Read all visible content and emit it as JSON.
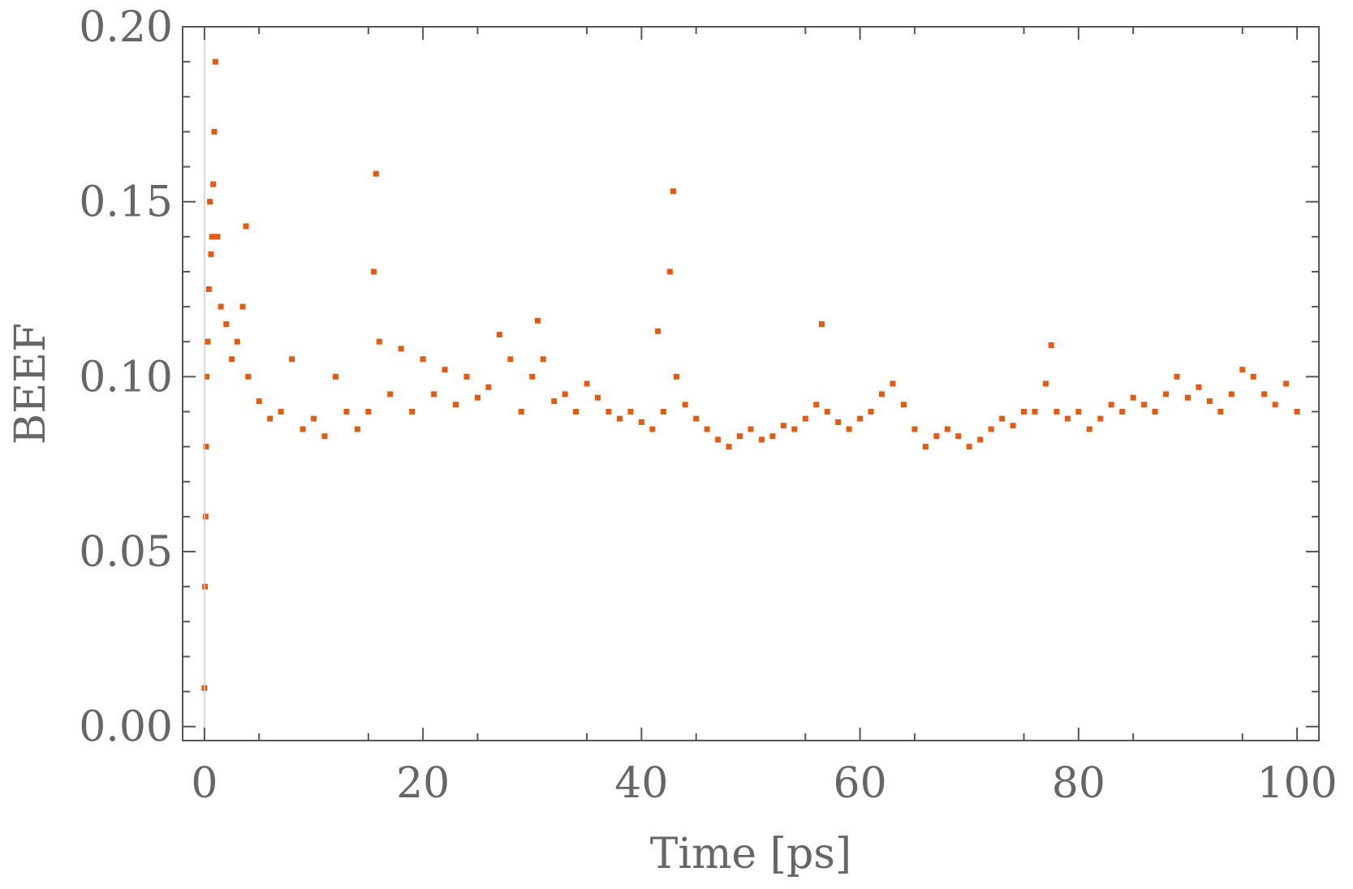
{
  "chart_data": {
    "type": "scatter",
    "title": "",
    "xlabel": "Time [ps]",
    "ylabel": "BEEF",
    "xlim": [
      -2,
      102
    ],
    "ylim": [
      -0.004,
      0.2
    ],
    "x_ticks": [
      0,
      20,
      40,
      60,
      80,
      100
    ],
    "x_tick_labels": [
      "0",
      "20",
      "40",
      "60",
      "80",
      "100"
    ],
    "y_ticks": [
      0.0,
      0.05,
      0.1,
      0.15,
      0.2
    ],
    "y_tick_labels": [
      "0.00",
      "0.05",
      "0.10",
      "0.15",
      "0.20"
    ],
    "grid": false,
    "legend": "none",
    "marker_color": "#e35a10",
    "series": [
      {
        "sampled_points": [
          [
            0.0,
            0.011
          ],
          [
            0.05,
            0.04
          ],
          [
            0.1,
            0.06
          ],
          [
            0.15,
            0.08
          ],
          [
            0.2,
            0.1
          ],
          [
            0.3,
            0.11
          ],
          [
            0.4,
            0.125
          ],
          [
            0.5,
            0.15
          ],
          [
            0.6,
            0.135
          ],
          [
            0.7,
            0.14
          ],
          [
            0.8,
            0.155
          ],
          [
            0.9,
            0.17
          ],
          [
            1.0,
            0.19
          ],
          [
            1.2,
            0.14
          ],
          [
            1.5,
            0.12
          ],
          [
            2.0,
            0.115
          ],
          [
            2.5,
            0.105
          ],
          [
            3.0,
            0.11
          ],
          [
            3.5,
            0.12
          ],
          [
            3.8,
            0.143
          ],
          [
            4.0,
            0.1
          ],
          [
            5.0,
            0.093
          ],
          [
            6.0,
            0.088
          ],
          [
            7.0,
            0.09
          ],
          [
            8.0,
            0.105
          ],
          [
            9.0,
            0.085
          ],
          [
            10.0,
            0.088
          ],
          [
            11.0,
            0.083
          ],
          [
            12.0,
            0.1
          ],
          [
            13.0,
            0.09
          ],
          [
            14.0,
            0.085
          ],
          [
            15.0,
            0.09
          ],
          [
            15.5,
            0.13
          ],
          [
            15.7,
            0.158
          ],
          [
            16.0,
            0.11
          ],
          [
            17.0,
            0.095
          ],
          [
            18.0,
            0.108
          ],
          [
            19.0,
            0.09
          ],
          [
            20.0,
            0.105
          ],
          [
            21.0,
            0.095
          ],
          [
            22.0,
            0.102
          ],
          [
            23.0,
            0.092
          ],
          [
            24.0,
            0.1
          ],
          [
            25.0,
            0.094
          ],
          [
            26.0,
            0.097
          ],
          [
            27.0,
            0.112
          ],
          [
            28.0,
            0.105
          ],
          [
            29.0,
            0.09
          ],
          [
            30.0,
            0.1
          ],
          [
            30.5,
            0.116
          ],
          [
            31.0,
            0.105
          ],
          [
            32.0,
            0.093
          ],
          [
            33.0,
            0.095
          ],
          [
            34.0,
            0.09
          ],
          [
            35.0,
            0.098
          ],
          [
            36.0,
            0.094
          ],
          [
            37.0,
            0.09
          ],
          [
            38.0,
            0.088
          ],
          [
            39.0,
            0.09
          ],
          [
            40.0,
            0.087
          ],
          [
            41.0,
            0.085
          ],
          [
            41.5,
            0.113
          ],
          [
            42.0,
            0.09
          ],
          [
            42.6,
            0.13
          ],
          [
            42.9,
            0.153
          ],
          [
            43.2,
            0.1
          ],
          [
            44.0,
            0.092
          ],
          [
            45.0,
            0.088
          ],
          [
            46.0,
            0.085
          ],
          [
            47.0,
            0.082
          ],
          [
            48.0,
            0.08
          ],
          [
            49.0,
            0.083
          ],
          [
            50.0,
            0.085
          ],
          [
            51.0,
            0.082
          ],
          [
            52.0,
            0.083
          ],
          [
            53.0,
            0.086
          ],
          [
            54.0,
            0.085
          ],
          [
            55.0,
            0.088
          ],
          [
            56.0,
            0.092
          ],
          [
            56.5,
            0.115
          ],
          [
            57.0,
            0.09
          ],
          [
            58.0,
            0.087
          ],
          [
            59.0,
            0.085
          ],
          [
            60.0,
            0.088
          ],
          [
            61.0,
            0.09
          ],
          [
            62.0,
            0.095
          ],
          [
            63.0,
            0.098
          ],
          [
            64.0,
            0.092
          ],
          [
            65.0,
            0.085
          ],
          [
            66.0,
            0.08
          ],
          [
            67.0,
            0.083
          ],
          [
            68.0,
            0.085
          ],
          [
            69.0,
            0.083
          ],
          [
            70.0,
            0.08
          ],
          [
            71.0,
            0.082
          ],
          [
            72.0,
            0.085
          ],
          [
            73.0,
            0.088
          ],
          [
            74.0,
            0.086
          ],
          [
            75.0,
            0.09
          ],
          [
            76.0,
            0.09
          ],
          [
            77.0,
            0.098
          ],
          [
            77.5,
            0.109
          ],
          [
            78.0,
            0.09
          ],
          [
            79.0,
            0.088
          ],
          [
            80.0,
            0.09
          ],
          [
            81.0,
            0.085
          ],
          [
            82.0,
            0.088
          ],
          [
            83.0,
            0.092
          ],
          [
            84.0,
            0.09
          ],
          [
            85.0,
            0.094
          ],
          [
            86.0,
            0.092
          ],
          [
            87.0,
            0.09
          ],
          [
            88.0,
            0.095
          ],
          [
            89.0,
            0.1
          ],
          [
            90.0,
            0.094
          ],
          [
            91.0,
            0.097
          ],
          [
            92.0,
            0.093
          ],
          [
            93.0,
            0.09
          ],
          [
            94.0,
            0.095
          ],
          [
            95.0,
            0.102
          ],
          [
            96.0,
            0.1
          ],
          [
            97.0,
            0.095
          ],
          [
            98.0,
            0.092
          ],
          [
            99.0,
            0.098
          ],
          [
            100.0,
            0.09
          ]
        ]
      }
    ]
  }
}
